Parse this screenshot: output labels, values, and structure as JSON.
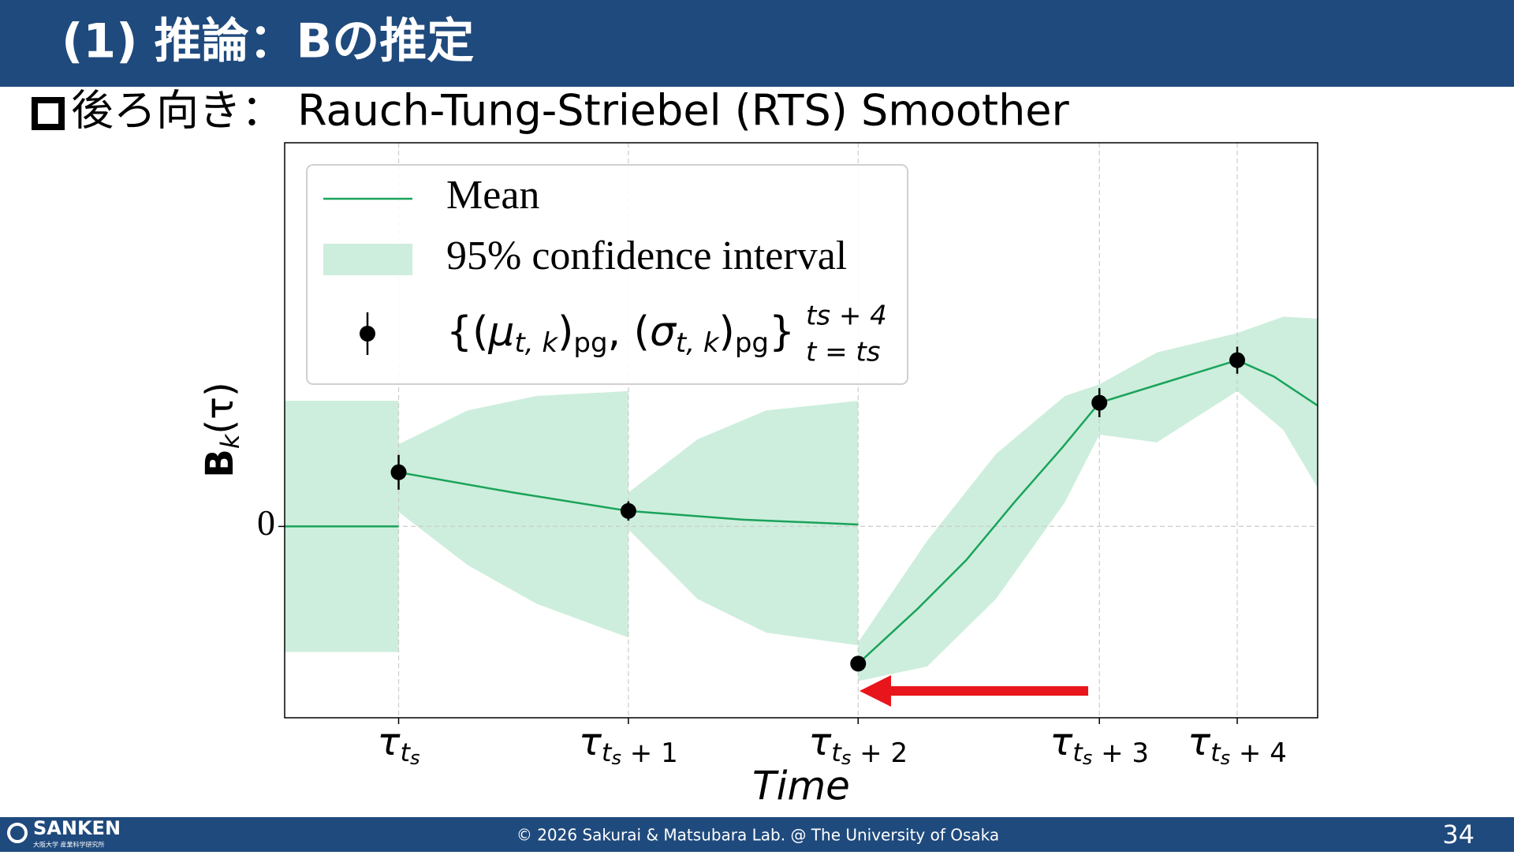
{
  "header": {
    "title": "(1) 推論：Bの推定",
    "subtitle": "後ろ向き： Rauch-Tung-Striebel (RTS) Smoother"
  },
  "footer": {
    "logo": "SANKEN",
    "logo_sub": "大阪大学 産業科学研究所",
    "copyright": "© 2026 Sakurai & Matsubara Lab. @ The University of Osaka",
    "page": "34"
  },
  "chart_data": {
    "type": "line",
    "xlim": [
      -0.496,
      4.0
    ],
    "ylim": [
      -1.98,
      3.97
    ],
    "grid": true,
    "xlabel": "Time",
    "ylabel": [
      "B",
      "k",
      "(τ)"
    ],
    "yticks": [
      0
    ],
    "xticks": [
      {
        "value": 0,
        "label": [
          "τ",
          "t",
          "s",
          ""
        ]
      },
      {
        "value": 1,
        "label": [
          "τ",
          "t",
          "s",
          " + 1"
        ]
      },
      {
        "value": 2,
        "label": [
          "τ",
          "t",
          "s",
          " + 2"
        ]
      },
      {
        "value": 3.05,
        "label": [
          "τ",
          "t",
          "s",
          " + 3"
        ]
      },
      {
        "value": 3.65,
        "label": [
          "τ",
          "t",
          "s",
          " + 4"
        ]
      }
    ],
    "legend": "upper left",
    "series": [
      {
        "name": "Mean",
        "color": "#1aa35b",
        "x": [
          -0.496,
          0,
          0,
          0,
          0.5,
          1.0,
          1.5,
          2.0,
          2.0,
          2.0,
          2.26,
          2.47,
          2.68,
          2.89,
          3.05,
          3.35,
          3.65,
          3.81,
          4.0
        ],
        "values": [
          0,
          0,
          null,
          0.56,
          0.35,
          0.16,
          0.07,
          0.02,
          null,
          -1.42,
          -0.85,
          -0.35,
          0.25,
          0.82,
          1.28,
          1.5,
          1.72,
          1.55,
          1.25
        ]
      },
      {
        "name": "95% confidence interval",
        "color": "#cdeedc",
        "x": [
          -0.496,
          0,
          0,
          0,
          0.3,
          0.6,
          1.0,
          1.0,
          1.0,
          1.3,
          1.6,
          2.0,
          2.0,
          2.0,
          2.3,
          2.6,
          2.9,
          3.05,
          3.3,
          3.65,
          3.85,
          4.0
        ],
        "lower": [
          -1.3,
          -1.3,
          null,
          0.15,
          -0.4,
          -0.8,
          -1.15,
          null,
          -0.03,
          -0.75,
          -1.1,
          -1.23,
          null,
          -1.6,
          -1.45,
          -0.75,
          0.25,
          0.95,
          0.87,
          1.4,
          1.0,
          0.4
        ],
        "upper": [
          1.3,
          1.3,
          null,
          0.85,
          1.2,
          1.35,
          1.4,
          null,
          0.35,
          0.9,
          1.2,
          1.3,
          null,
          -1.2,
          -0.15,
          0.75,
          1.35,
          1.47,
          1.8,
          2.0,
          2.17,
          2.15
        ]
      },
      {
        "name": [
          "{(",
          "μ",
          "t, k",
          ")",
          "pg",
          ", (",
          "σ",
          "t, k",
          ")",
          "pg",
          "}",
          "ts + 4",
          "t = ts"
        ],
        "color": "#000000",
        "x": [
          0,
          1,
          2,
          3.05,
          3.65
        ],
        "values": [
          0.56,
          0.16,
          -1.42,
          1.28,
          1.72
        ],
        "errors": [
          0.18,
          0.1,
          0.05,
          0.15,
          0.14
        ]
      }
    ]
  }
}
